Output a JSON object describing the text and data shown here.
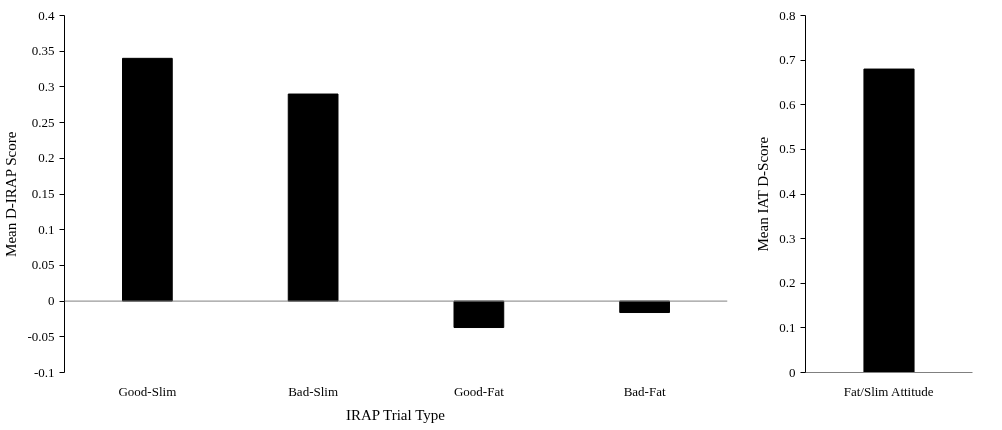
{
  "chart_data": [
    {
      "type": "bar",
      "xlabel": "IRAP Trial Type",
      "ylabel": "Mean D-IRAP Score",
      "categories": [
        "Good-Slim",
        "Bad-Slim",
        "Good-Fat",
        "Bad-Fat"
      ],
      "values": [
        0.34,
        0.29,
        -0.037,
        -0.016
      ],
      "color": "#000000",
      "ylim": [
        -0.1,
        0.4
      ],
      "yticks": [
        {
          "value": -0.1,
          "label": "-0.1"
        },
        {
          "value": -0.05,
          "label": "-0.05"
        },
        0,
        0.05,
        0.1,
        0.15,
        0.2,
        0.25,
        0.3,
        0.35,
        0.4
      ],
      "grid": false,
      "ref_lines": [
        {
          "axis": "y",
          "value": 0,
          "color": "#808080"
        }
      ]
    },
    {
      "type": "bar",
      "ylabel": "Mean IAT D-Score",
      "categories": [
        "Fat/Slim Attitude"
      ],
      "values": [
        0.68
      ],
      "color": "#000000",
      "ylim": [
        0,
        0.8
      ],
      "yticks": [
        0,
        0.1,
        0.2,
        0.3,
        0.4,
        0.5,
        0.6,
        0.7,
        0.8
      ],
      "grid": false
    }
  ]
}
